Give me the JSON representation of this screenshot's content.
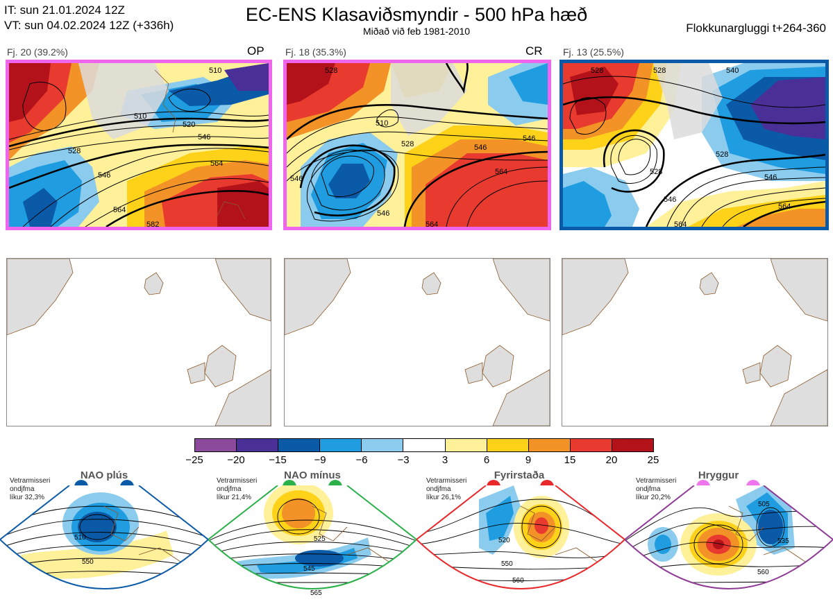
{
  "header": {
    "it_line": "IT: sun 21.01.2024 12Z",
    "vt_line": "VT: sun 04.02.2024 12Z  (+336h)",
    "title": "EC-ENS Klasaviðsmyndir - 500 hPa hæð",
    "subtitle": "Miðað við feb 1981-2010",
    "window": "Flokkunargluggi t+264-360"
  },
  "clusters": [
    {
      "label": "Fj. 20 (39.2%)",
      "tag": "OP",
      "frame_color": "#ee66ee",
      "contours": [
        "510",
        "510",
        "520",
        "528",
        "546",
        "546",
        "564",
        "564",
        "582"
      ]
    },
    {
      "label": "Fj. 18 (35.3%)",
      "tag": "CR",
      "frame_color": "#ee66ee",
      "contours": [
        "528",
        "510",
        "528",
        "546",
        "546",
        "564",
        "564",
        "546",
        "546"
      ]
    },
    {
      "label": "Fj. 13 (25.5%)",
      "tag": "",
      "frame_color": "#0b5aa8",
      "contours": [
        "528",
        "528",
        "540",
        "528",
        "528",
        "546",
        "546",
        "564",
        "564"
      ]
    }
  ],
  "colorbar": {
    "colors": [
      "#8b4a9c",
      "#4a2f96",
      "#0b5aa8",
      "#1f9de0",
      "#8acbee",
      "#ffffff",
      "#fff09a",
      "#ffd21a",
      "#f39227",
      "#e83a2e",
      "#b3121a"
    ],
    "ticks": [
      "−25",
      "−20",
      "−15",
      "−9",
      "−6",
      "−3",
      "3",
      "6",
      "9",
      "15",
      "20",
      "25"
    ]
  },
  "regimes": [
    {
      "name": "NAO plús",
      "prob_l1": "Vetrarmisseri",
      "prob_l2": "ondjfma",
      "prob_l3": "líkur 32,3%",
      "frame_color": "#0b5aa8",
      "dot_color": "#0b5aa8",
      "labels": [
        "510",
        "550"
      ]
    },
    {
      "name": "NAO mínus",
      "prob_l1": "Vetrarmisseri",
      "prob_l2": "ondjfma",
      "prob_l3": "líkur 21,4%",
      "frame_color": "#2bb04a",
      "dot_color": "#2bb04a",
      "labels": [
        "525",
        "545",
        "565"
      ]
    },
    {
      "name": "Fyrirstaða",
      "prob_l1": "Vetrarmisseri",
      "prob_l2": "ondjfma",
      "prob_l3": "líkur 26,1%",
      "frame_color": "#e8282a",
      "dot_color": "#e8282a",
      "labels": [
        "520",
        "550",
        "560"
      ]
    },
    {
      "name": "Hryggur",
      "prob_l1": "Vetrarmisseri",
      "prob_l2": "ondjfma",
      "prob_l3": "líkur 20,2%",
      "frame_color": "#8e3a96",
      "dot_color": "#ee77ee",
      "labels": [
        "505",
        "535",
        "560"
      ]
    }
  ]
}
